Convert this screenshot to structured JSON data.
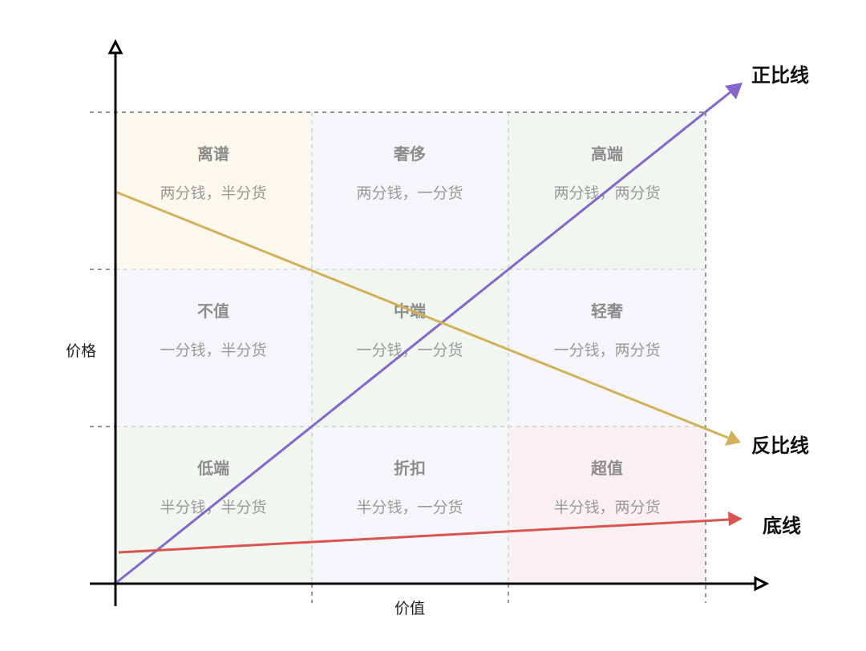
{
  "axes": {
    "x_label": "价值",
    "y_label": "价格"
  },
  "cells": [
    {
      "title": "离谱",
      "subtitle": "两分钱，半分货",
      "color": "#fbf8ee"
    },
    {
      "title": "奢侈",
      "subtitle": "两分钱，一分货",
      "color": "#f5f6f9"
    },
    {
      "title": "高端",
      "subtitle": "两分钱，两分货",
      "color": "#f1f6f0"
    },
    {
      "title": "不值",
      "subtitle": "一分钱，半分货",
      "color": "#f5f6f9"
    },
    {
      "title": "中端",
      "subtitle": "一分钱，一分货",
      "color": "#f1f6f0"
    },
    {
      "title": "轻奢",
      "subtitle": "一分钱，两分货",
      "color": "#f5f6f9"
    },
    {
      "title": "低端",
      "subtitle": "半分钱，半分货",
      "color": "#f1f6f0"
    },
    {
      "title": "折扣",
      "subtitle": "半分钱，一分货",
      "color": "#f5f6f9"
    },
    {
      "title": "超值",
      "subtitle": "半分钱，两分货",
      "color": "#f9f1f1"
    }
  ],
  "lines": [
    {
      "label": "正比线",
      "color": "#8466cc"
    },
    {
      "label": "反比线",
      "color": "#d2b15a"
    },
    {
      "label": "底线",
      "color": "#d9534f"
    }
  ]
}
